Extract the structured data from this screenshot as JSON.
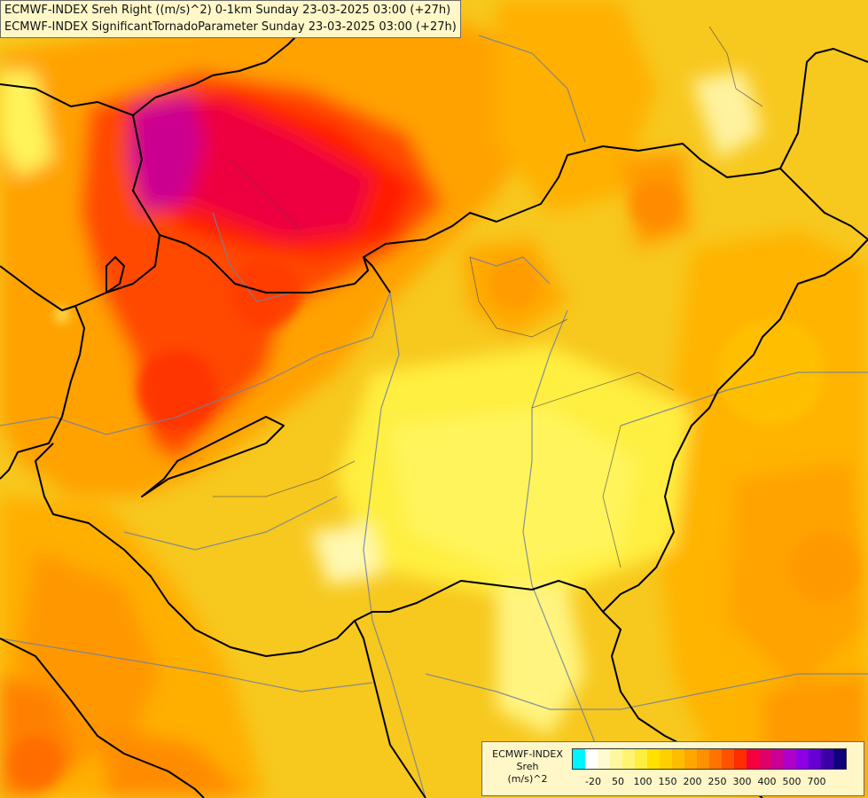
{
  "title_lines": [
    "ECMWF-INDEX Sreh Right ((m/s)^2) 0-1km Sunday 23-03-2025 03:00 (+27h)",
    "ECMWF-INDEX SignificantTornadoParameter Sunday 23-03-2025 03:00 (+27h)"
  ],
  "legend": {
    "title_line1": "ECMWF-INDEX",
    "title_line2": "Sreh",
    "title_line3": "(m/s)^2",
    "colors": [
      "#00f5ff",
      "#ffffff",
      "#fffbd0",
      "#fff7a0",
      "#fff372",
      "#ffee3c",
      "#ffe200",
      "#ffd000",
      "#ffbd00",
      "#ffa700",
      "#ff9000",
      "#ff7400",
      "#ff5200",
      "#ff2c00",
      "#f5003c",
      "#e0006a",
      "#c80096",
      "#b000c8",
      "#8c00e6",
      "#6400d2",
      "#3c00a8",
      "#10007c"
    ],
    "ticks": [
      "-20",
      "50",
      "100",
      "150",
      "200",
      "250",
      "300",
      "400",
      "500",
      "700"
    ]
  },
  "map": {
    "background_color": "#f7d21a",
    "border_color": "#000000",
    "river_color": "#7080a0"
  }
}
